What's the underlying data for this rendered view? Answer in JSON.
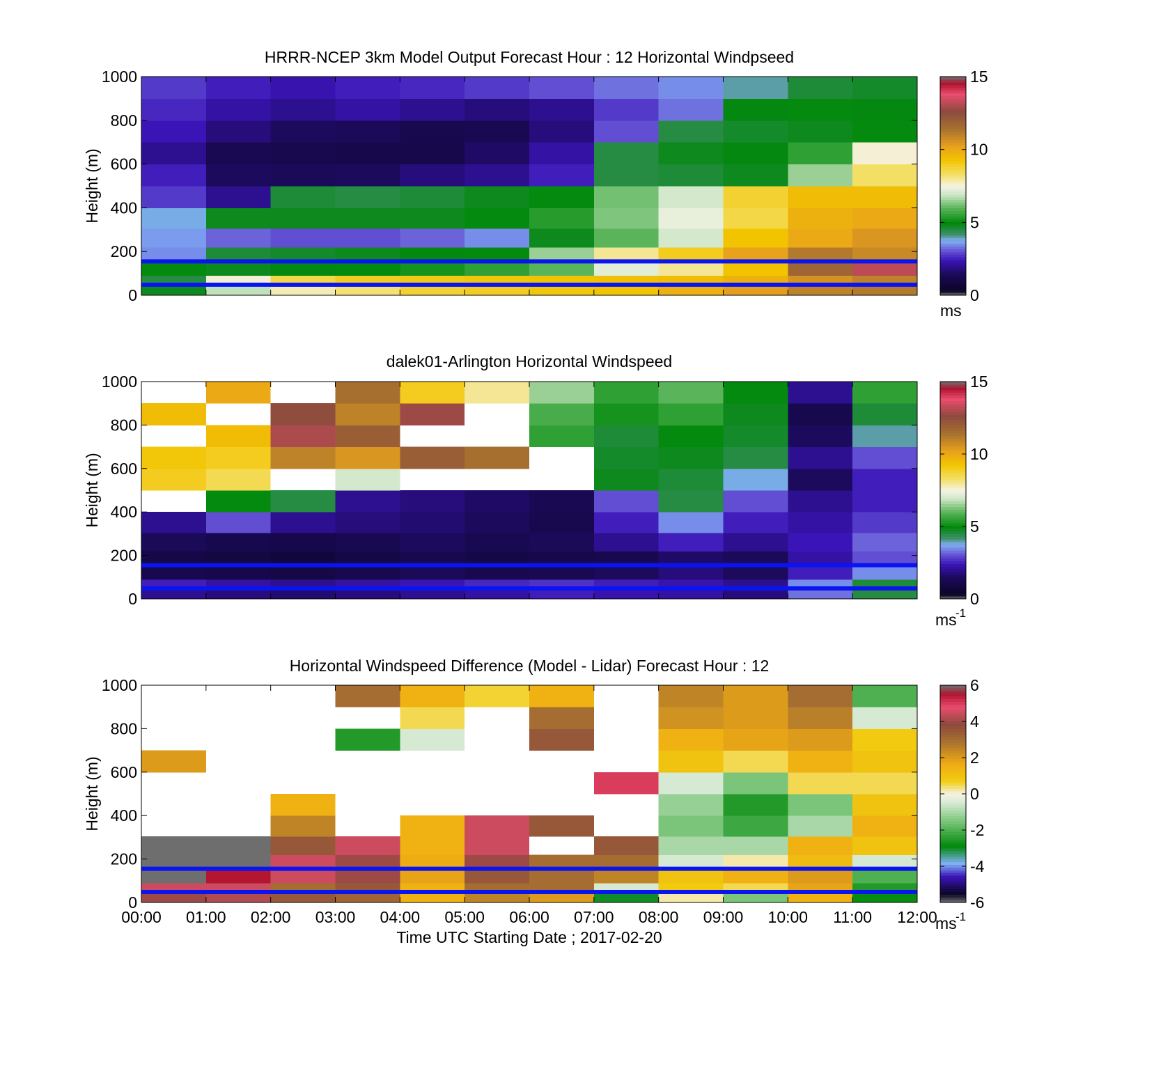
{
  "chart_data": [
    {
      "type": "heatmap",
      "title": "HRRR-NCEP 3km Model Output   Forecast Hour : 12 Horizontal Windpseed",
      "ylabel": "Height (m)",
      "xlabel": "",
      "ylim": [
        0,
        1000
      ],
      "xlim": [
        0,
        12
      ],
      "yticks": [
        "0",
        "200",
        "400",
        "600",
        "800",
        "1000"
      ],
      "xticks": [
        "",
        "",
        "",
        "",
        "",
        "",
        "",
        "",
        "",
        "",
        "",
        "",
        ""
      ],
      "colorbar": {
        "min": 0,
        "max": 15,
        "ticks": [
          "0",
          "5",
          "10",
          "15"
        ],
        "unit": "ms",
        "unit_sup": "",
        "palette": "speed"
      },
      "reference_lines_m": [
        155,
        48
      ],
      "x_hours": [
        0.5,
        1.5,
        2.5,
        3.5,
        4.5,
        5.5,
        6.5,
        7.5,
        8.5,
        9.5,
        10.5,
        11.5
      ],
      "heights_m": [
        20,
        60,
        120,
        180,
        260,
        350,
        450,
        550,
        650,
        750,
        850,
        950
      ],
      "values": [
        [
          4.8,
          6.8,
          7.8,
          8.2,
          8.8,
          9.0,
          9.2,
          9.3,
          9.8,
          10.3,
          11.0,
          11.2
        ],
        [
          4.5,
          7.6,
          8.6,
          9.0,
          9.1,
          9.2,
          9.3,
          9.4,
          9.5,
          9.8,
          10.6,
          11.0
        ],
        [
          5.0,
          4.8,
          4.9,
          5.0,
          5.2,
          5.5,
          6.0,
          7.2,
          8.0,
          9.3,
          11.8,
          13.2
        ],
        [
          3.5,
          4.6,
          4.7,
          4.8,
          4.9,
          5.0,
          6.5,
          8.0,
          9.0,
          10.2,
          11.2,
          10.8
        ],
        [
          3.6,
          3.2,
          3.0,
          3.0,
          3.2,
          3.5,
          4.8,
          6.0,
          7.0,
          9.3,
          10.0,
          10.5
        ],
        [
          3.8,
          4.8,
          4.8,
          4.8,
          4.8,
          5.0,
          5.4,
          6.3,
          7.3,
          8.6,
          9.8,
          10.0
        ],
        [
          2.8,
          2.0,
          4.6,
          4.5,
          4.6,
          4.8,
          5.0,
          6.2,
          7.0,
          8.8,
          9.5,
          9.5
        ],
        [
          2.5,
          1.5,
          1.4,
          1.5,
          1.8,
          2.0,
          2.5,
          4.5,
          4.6,
          4.8,
          6.5,
          8.3
        ],
        [
          2.0,
          1.3,
          1.2,
          1.1,
          1.1,
          1.6,
          2.2,
          4.5,
          4.8,
          4.9,
          5.5,
          7.6
        ],
        [
          2.4,
          1.8,
          1.5,
          1.4,
          1.2,
          1.3,
          1.8,
          3.0,
          4.5,
          4.7,
          4.8,
          5.0
        ],
        [
          2.6,
          2.2,
          2.0,
          2.2,
          2.0,
          1.8,
          2.0,
          2.8,
          3.3,
          4.9,
          5.0,
          4.9
        ],
        [
          2.8,
          2.5,
          2.3,
          2.5,
          2.6,
          2.8,
          3.0,
          3.3,
          3.5,
          4.0,
          4.6,
          4.7
        ]
      ]
    },
    {
      "type": "heatmap",
      "title": "dalek01-Arlington  Horizontal Windspeed",
      "ylabel": "Height (m)",
      "xlabel": "",
      "ylim": [
        0,
        1000
      ],
      "xlim": [
        0,
        12
      ],
      "yticks": [
        "0",
        "200",
        "400",
        "600",
        "800",
        "1000"
      ],
      "xticks": [
        "",
        "",
        "",
        "",
        "",
        "",
        "",
        "",
        "",
        "",
        "",
        "",
        ""
      ],
      "colorbar": {
        "min": 0,
        "max": 15,
        "ticks": [
          "0",
          "5",
          "10",
          "15"
        ],
        "unit": "ms",
        "unit_sup": "-1",
        "palette": "speed"
      },
      "reference_lines_m": [
        155,
        48
      ],
      "x_hours": [
        0.5,
        1.5,
        2.5,
        3.5,
        4.5,
        5.5,
        6.5,
        7.5,
        8.5,
        9.5,
        10.5,
        11.5
      ],
      "heights_m": [
        20,
        60,
        120,
        180,
        260,
        350,
        450,
        550,
        650,
        750,
        850,
        950
      ],
      "values": [
        [
          2.0,
          1.8,
          1.7,
          1.8,
          2.0,
          2.2,
          2.5,
          2.3,
          2.2,
          1.8,
          3.3,
          4.5
        ],
        [
          2.5,
          2.2,
          2.0,
          2.2,
          2.4,
          2.6,
          2.7,
          2.5,
          2.3,
          2.0,
          3.5,
          4.6
        ],
        [
          1.2,
          1.1,
          1.0,
          1.2,
          1.4,
          1.2,
          1.3,
          1.5,
          1.8,
          1.5,
          2.5,
          3.5
        ],
        [
          1.0,
          0.9,
          0.8,
          1.0,
          1.2,
          1.0,
          1.1,
          1.2,
          1.6,
          1.4,
          2.2,
          3.0
        ],
        [
          1.4,
          1.2,
          1.1,
          1.3,
          1.5,
          1.3,
          1.4,
          2.0,
          2.5,
          2.0,
          2.4,
          3.2
        ],
        [
          2.0,
          3.0,
          2.0,
          1.8,
          1.7,
          1.5,
          1.2,
          2.5,
          3.5,
          2.5,
          2.2,
          2.8
        ],
        [
          null,
          5.0,
          4.5,
          2.0,
          1.8,
          1.6,
          1.3,
          3.0,
          4.5,
          3.0,
          2.0,
          2.5
        ],
        [
          9.0,
          8.5,
          null,
          7.0,
          null,
          null,
          null,
          4.8,
          4.6,
          3.8,
          1.5,
          2.5
        ],
        [
          9.2,
          9.0,
          11.0,
          10.5,
          12.0,
          11.5,
          null,
          4.7,
          4.8,
          4.5,
          2.0,
          3.0
        ],
        [
          null,
          9.5,
          13.0,
          12.0,
          null,
          null,
          5.5,
          4.6,
          5.0,
          4.7,
          1.5,
          4.0
        ],
        [
          9.5,
          null,
          12.5,
          11.0,
          12.8,
          null,
          5.8,
          5.2,
          5.5,
          4.8,
          1.2,
          4.6
        ],
        [
          null,
          10.0,
          null,
          11.5,
          9.0,
          8.0,
          6.5,
          5.5,
          6.0,
          5.0,
          2.0,
          5.5
        ]
      ]
    },
    {
      "type": "heatmap",
      "title": "Horizontal Windspeed Difference (Model - Lidar) Forecast Hour : 12",
      "ylabel": "Height (m)",
      "xlabel": "Time UTC  Starting Date ; 2017-02-20",
      "ylim": [
        0,
        1000
      ],
      "xlim": [
        0,
        12
      ],
      "yticks": [
        "0",
        "200",
        "400",
        "600",
        "800",
        "1000"
      ],
      "xticks": [
        "00:00",
        "01:00",
        "02:00",
        "03:00",
        "04:00",
        "05:00",
        "06:00",
        "07:00",
        "08:00",
        "09:00",
        "10:00",
        "11:00",
        "12:00"
      ],
      "colorbar": {
        "min": -6,
        "max": 6,
        "ticks": [
          "-6",
          "-4",
          "-2",
          "0",
          "2",
          "4",
          "6"
        ],
        "unit": "ms",
        "unit_sup": "-1",
        "palette": "diff"
      },
      "reference_lines_m": [
        155,
        48
      ],
      "x_hours": [
        0.5,
        1.5,
        2.5,
        3.5,
        4.5,
        5.5,
        6.5,
        7.5,
        8.5,
        9.5,
        10.5,
        11.5
      ],
      "heights_m": [
        20,
        60,
        120,
        180,
        260,
        350,
        450,
        550,
        650,
        750,
        850,
        950
      ],
      "values": [
        [
          4.0,
          4.2,
          3.5,
          3.2,
          1.5,
          2.5,
          2.0,
          -3.0,
          0.2,
          -1.5,
          1.5,
          -2.8
        ],
        [
          4.5,
          4.5,
          3.0,
          3.5,
          1.5,
          3.0,
          3.0,
          -0.5,
          0.8,
          0.5,
          1.8,
          -2.5
        ],
        [
          6.0,
          5.5,
          4.5,
          4.0,
          1.8,
          3.5,
          3.0,
          2.5,
          1.0,
          1.5,
          2.0,
          -2.0
        ],
        [
          6.0,
          6.0,
          4.5,
          4.0,
          1.6,
          4.0,
          3.0,
          3.0,
          -0.5,
          0.2,
          1.2,
          -0.5
        ],
        [
          6.0,
          6.0,
          3.5,
          4.5,
          1.5,
          4.5,
          null,
          3.5,
          -1.0,
          -1.0,
          1.5,
          1.0
        ],
        [
          null,
          null,
          2.5,
          null,
          1.5,
          4.5,
          3.5,
          null,
          -1.5,
          -2.2,
          -1.0,
          1.5
        ],
        [
          null,
          null,
          1.5,
          null,
          null,
          null,
          null,
          null,
          -1.2,
          -2.5,
          -1.5,
          1.0
        ],
        [
          null,
          null,
          null,
          null,
          null,
          null,
          null,
          5.0,
          -0.5,
          -1.5,
          0.5,
          0.5
        ],
        [
          2.0,
          null,
          null,
          null,
          null,
          null,
          null,
          null,
          1.0,
          0.5,
          1.5,
          1.0
        ],
        [
          null,
          null,
          null,
          -2.5,
          -0.5,
          null,
          3.5,
          null,
          1.5,
          1.8,
          2.0,
          0.8
        ],
        [
          null,
          null,
          null,
          null,
          0.5,
          null,
          3.0,
          null,
          2.2,
          2.0,
          2.6,
          -0.5
        ],
        [
          null,
          null,
          null,
          3.0,
          1.5,
          0.6,
          1.5,
          null,
          2.5,
          2.0,
          3.0,
          -2.0
        ]
      ]
    }
  ]
}
